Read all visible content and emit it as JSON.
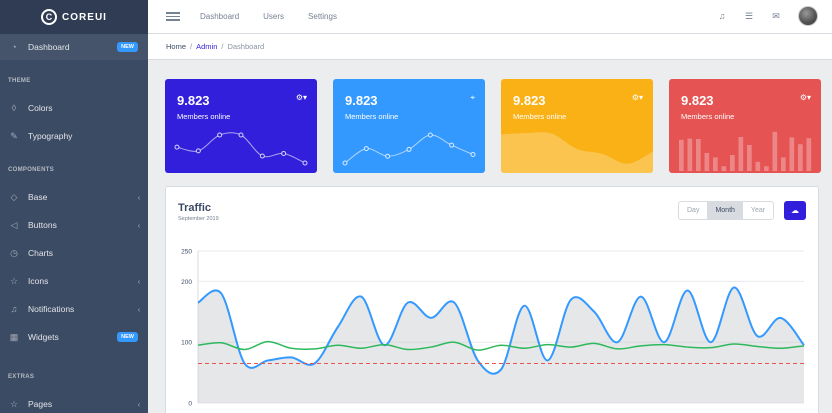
{
  "brand": {
    "mark": "C",
    "name": "COREUI"
  },
  "sidebar": {
    "dashboard": {
      "label": "Dashboard",
      "badge": "NEW"
    },
    "theme_title": "THEME",
    "colors": "Colors",
    "typography": "Typography",
    "components_title": "COMPONENTS",
    "base": "Base",
    "buttons": "Buttons",
    "charts": "Charts",
    "icons": "Icons",
    "notifications": "Notifications",
    "widgets": {
      "label": "Widgets",
      "badge": "NEW"
    },
    "extras_title": "EXTRAS",
    "pages": "Pages"
  },
  "header": {
    "nav": [
      "Dashboard",
      "Users",
      "Settings"
    ]
  },
  "breadcrumb": {
    "home": "Home",
    "admin": "Admin",
    "current": "Dashboard",
    "separator": "/"
  },
  "widgets": [
    {
      "value": "9.823",
      "label": "Members online",
      "color": "#321fdb",
      "icon": "gear-icon",
      "sparkline": [
        65,
        59,
        84,
        84,
        51,
        55,
        40
      ]
    },
    {
      "value": "9.823",
      "label": "Members online",
      "color": "#39f",
      "icon": "location-icon",
      "sparkline": [
        1,
        18,
        9,
        17,
        34,
        22,
        11
      ]
    },
    {
      "value": "9.823",
      "label": "Members online",
      "color": "#f9b115",
      "icon": "gear-icon",
      "sparkline": [
        78,
        81,
        80,
        45,
        34,
        12,
        40
      ]
    },
    {
      "value": "9.823",
      "label": "Members online",
      "color": "#e55353",
      "icon": "gear-icon",
      "bars": [
        78,
        81,
        80,
        45,
        34,
        12,
        40,
        85,
        65,
        23,
        12,
        98,
        34,
        84,
        67,
        82
      ]
    }
  ],
  "traffic": {
    "title": "Traffic",
    "subtitle": "September 2019",
    "range_buttons": [
      "Day",
      "Month",
      "Year"
    ],
    "active_range": "Month"
  },
  "chart_data": {
    "type": "line",
    "ylim": [
      0,
      250
    ],
    "yticks": [
      0,
      100,
      200,
      250
    ],
    "series": [
      {
        "values": [
          165,
          180,
          65,
          70,
          75,
          65,
          125,
          175,
          95,
          165,
          140,
          165,
          70,
          55,
          160,
          70,
          170,
          150,
          100,
          175,
          100,
          185,
          100,
          190,
          110,
          140,
          95
        ]
      },
      {
        "values": [
          95,
          99,
          88,
          101,
          90,
          89,
          95,
          90,
          96,
          88,
          92,
          100,
          87,
          95,
          90,
          96,
          92,
          98,
          89,
          94,
          96,
          92,
          91,
          97,
          93,
          90,
          94
        ]
      },
      {
        "values": [
          65,
          65,
          65,
          65,
          65,
          65,
          65,
          65,
          65,
          65,
          65,
          65,
          65,
          65,
          65,
          65,
          65,
          65,
          65,
          65,
          65,
          65,
          65,
          65,
          65,
          65,
          65
        ]
      }
    ],
    "colors": [
      "#39f",
      "#2eb85c",
      "#e55353"
    ]
  }
}
